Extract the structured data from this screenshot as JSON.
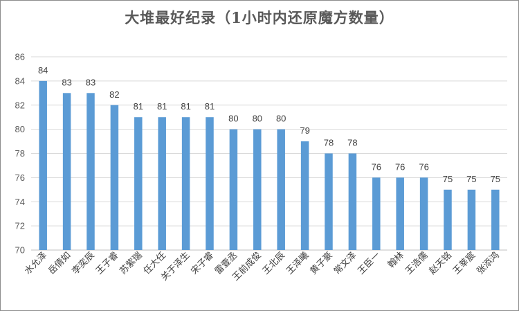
{
  "chart_data": {
    "type": "bar",
    "title": "大堆最好纪录（1小时内还原魔方数量）",
    "categories": [
      "水允泽",
      "岳倩如",
      "李奕辰",
      "王子睿",
      "苏紫瑞",
      "任大任",
      "关于泽生",
      "宋子睿",
      "雷壹丞",
      "王前成俊",
      "王北辰",
      "王泽曦",
      "黄子豪",
      "常文泽",
      "王臣一",
      "翰林",
      "王浩儒",
      "赵天铭",
      "王莘宸",
      "张添鸿"
    ],
    "values": [
      84,
      83,
      83,
      82,
      81,
      81,
      81,
      81,
      80,
      80,
      80,
      79,
      78,
      78,
      76,
      76,
      76,
      75,
      75,
      75
    ],
    "ylim": [
      70,
      86
    ],
    "yticks": [
      70,
      72,
      74,
      76,
      78,
      80,
      82,
      84,
      86
    ],
    "grid": true,
    "legend": "none",
    "bar_color": "#5b9bd5",
    "xlabel": "",
    "ylabel": ""
  }
}
